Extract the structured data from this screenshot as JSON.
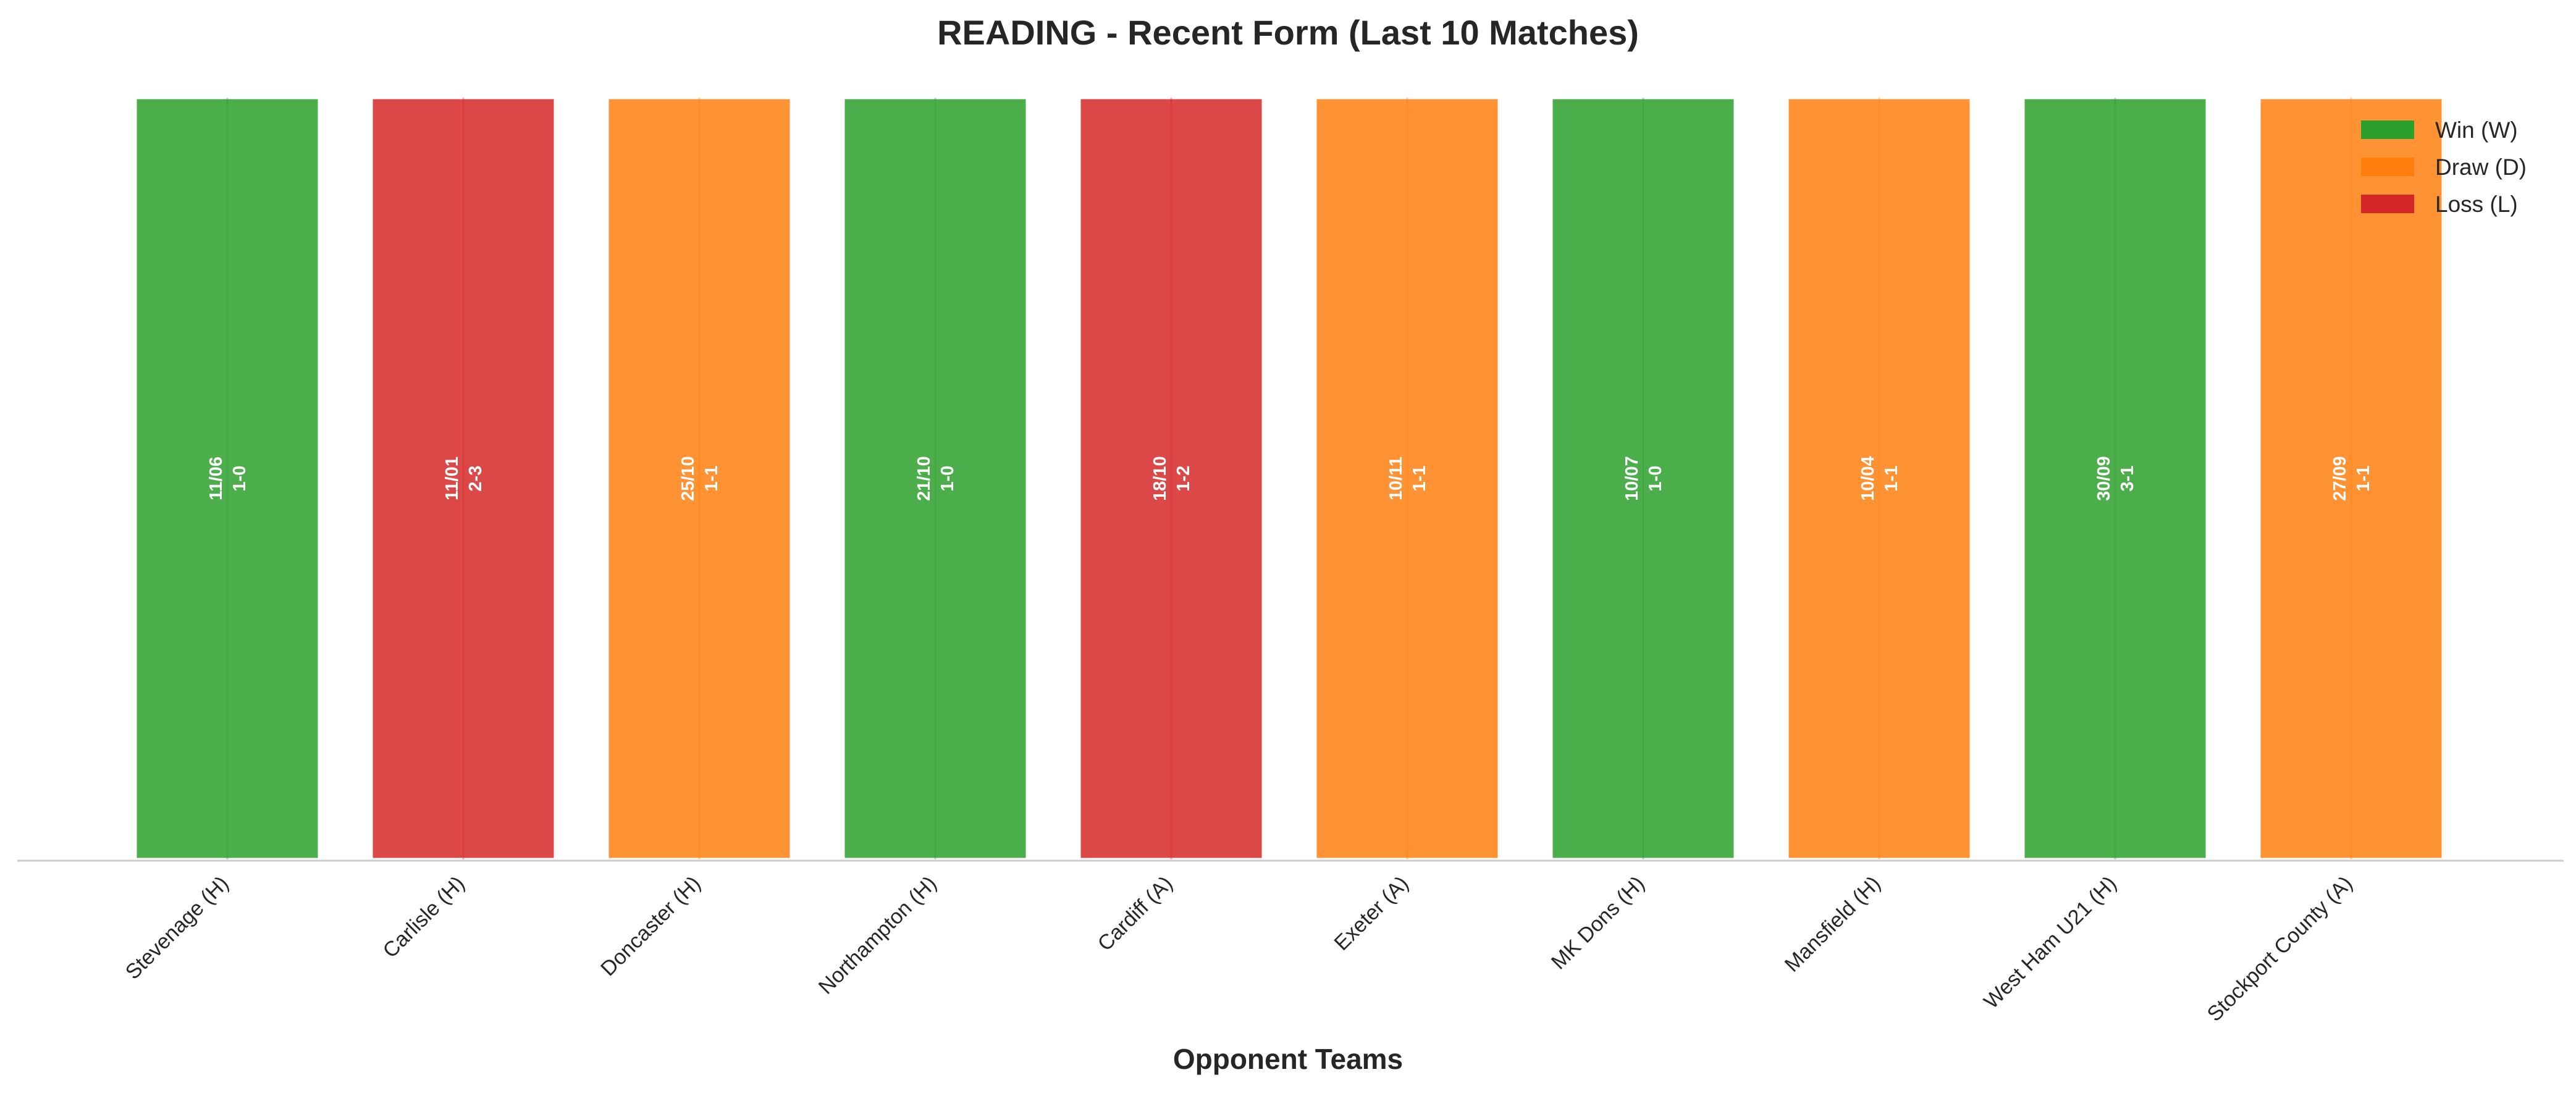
{
  "chart_data": {
    "type": "bar",
    "title": "READING - Recent Form (Last 10 Matches)",
    "xlabel": "Opponent Teams",
    "ylabel": "",
    "grid": false,
    "legend_position": "top-right",
    "legend": [
      {
        "key": "W",
        "label": "Win (W)",
        "color": "#2ca02c"
      },
      {
        "key": "D",
        "label": "Draw (D)",
        "color": "#ff7f0e"
      },
      {
        "key": "L",
        "label": "Loss (L)",
        "color": "#d62728"
      }
    ],
    "categories": [
      "Stevenage (H)",
      "Carlisle (H)",
      "Doncaster (H)",
      "Northampton (H)",
      "Cardiff (A)",
      "Exeter (A)",
      "MK Dons (H)",
      "Mansfield (H)",
      "West Ham U21 (H)",
      "Stockport County (A)"
    ],
    "values": [
      1,
      1,
      1,
      1,
      1,
      1,
      1,
      1,
      1,
      1
    ],
    "ylim": [
      0,
      1
    ],
    "results": [
      "W",
      "L",
      "D",
      "W",
      "L",
      "D",
      "W",
      "D",
      "W",
      "D"
    ],
    "dates": [
      "11/06",
      "11/01",
      "25/10",
      "21/10",
      "18/10",
      "10/11",
      "10/07",
      "10/04",
      "30/09",
      "27/09"
    ],
    "scores": [
      "1-0",
      "2-3",
      "1-1",
      "1-0",
      "1-2",
      "1-1",
      "1-0",
      "1-1",
      "3-1",
      "1-1"
    ]
  }
}
